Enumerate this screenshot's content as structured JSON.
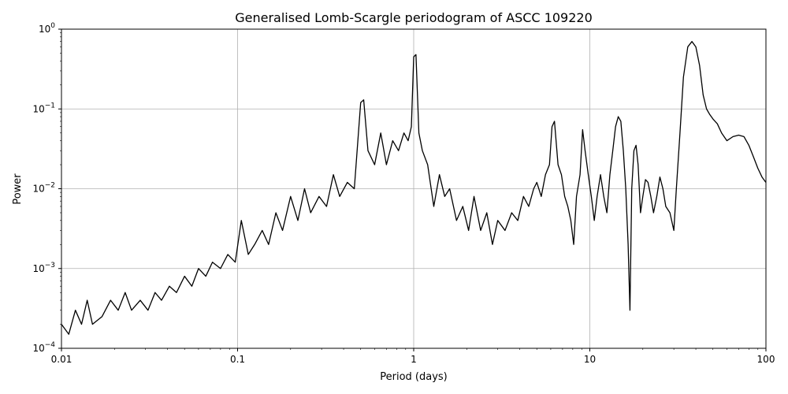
{
  "chart_data": {
    "type": "line",
    "title": "Generalised Lomb-Scargle periodogram of ASCC 109220",
    "xlabel": "Period (days)",
    "ylabel": "Power",
    "xscale": "log",
    "yscale": "log",
    "xlim": [
      0.01,
      100
    ],
    "ylim": [
      0.0001,
      1
    ],
    "grid": true,
    "line_color": "#000000",
    "x_ticks": [
      {
        "value": 0.01,
        "label": "0.01"
      },
      {
        "value": 0.1,
        "label": "0.1"
      },
      {
        "value": 1,
        "label": "1"
      },
      {
        "value": 10,
        "label": "10"
      },
      {
        "value": 100,
        "label": "100"
      }
    ],
    "y_ticks": [
      {
        "value": 0.0001,
        "base": "10",
        "exp": "−4"
      },
      {
        "value": 0.001,
        "base": "10",
        "exp": "−3"
      },
      {
        "value": 0.01,
        "base": "10",
        "exp": "−2"
      },
      {
        "value": 0.1,
        "base": "10",
        "exp": "−1"
      },
      {
        "value": 1,
        "base": "10",
        "exp": "0"
      }
    ],
    "series": [
      {
        "x": [
          0.01,
          0.011,
          0.012,
          0.013,
          0.014,
          0.015,
          0.017,
          0.019,
          0.021,
          0.023,
          0.025,
          0.028,
          0.031,
          0.034,
          0.037,
          0.041,
          0.045,
          0.05,
          0.055,
          0.06,
          0.066,
          0.072,
          0.08,
          0.088,
          0.097,
          0.105,
          0.115,
          0.125,
          0.138,
          0.15,
          0.165,
          0.18,
          0.2,
          0.22,
          0.24,
          0.26,
          0.29,
          0.32,
          0.35,
          0.38,
          0.42,
          0.46,
          0.5,
          0.52,
          0.55,
          0.6,
          0.65,
          0.7,
          0.76,
          0.82,
          0.88,
          0.93,
          0.97,
          1.0,
          1.03,
          1.07,
          1.12,
          1.2,
          1.3,
          1.4,
          1.5,
          1.6,
          1.75,
          1.9,
          2.05,
          2.2,
          2.4,
          2.6,
          2.8,
          3.0,
          3.3,
          3.6,
          3.9,
          4.2,
          4.5,
          4.8,
          5.0,
          5.3,
          5.6,
          5.9,
          6.1,
          6.3,
          6.6,
          6.9,
          7.2,
          7.5,
          7.8,
          8.1,
          8.4,
          8.8,
          9.1,
          9.4,
          9.8,
          10.2,
          10.6,
          11.0,
          11.5,
          12.0,
          12.5,
          13.0,
          13.5,
          14.0,
          14.5,
          15.0,
          15.5,
          16.0,
          16.5,
          16.9,
          17.3,
          17.8,
          18.3,
          18.8,
          19.4,
          20.0,
          20.7,
          21.4,
          22.2,
          23.0,
          24.0,
          25.0,
          26.0,
          27.0,
          28.5,
          30.0,
          31.0,
          32.5,
          34.0,
          36.0,
          38.0,
          40.0,
          42.0,
          44.0,
          46.0,
          48.0,
          50.0,
          53.0,
          56.0,
          60.0,
          65.0,
          70.0,
          75.0,
          80.0,
          85.0,
          90.0,
          95.0,
          100.0
        ],
        "y": [
          0.0002,
          0.00015,
          0.0003,
          0.0002,
          0.0004,
          0.0002,
          0.00025,
          0.0004,
          0.0003,
          0.0005,
          0.0003,
          0.0004,
          0.0003,
          0.0005,
          0.0004,
          0.0006,
          0.0005,
          0.0008,
          0.0006,
          0.001,
          0.0008,
          0.0012,
          0.001,
          0.0015,
          0.0012,
          0.004,
          0.0015,
          0.002,
          0.003,
          0.002,
          0.005,
          0.003,
          0.008,
          0.004,
          0.01,
          0.005,
          0.008,
          0.006,
          0.015,
          0.008,
          0.012,
          0.01,
          0.12,
          0.13,
          0.03,
          0.02,
          0.05,
          0.02,
          0.04,
          0.03,
          0.05,
          0.04,
          0.06,
          0.45,
          0.48,
          0.05,
          0.03,
          0.02,
          0.006,
          0.015,
          0.008,
          0.01,
          0.004,
          0.006,
          0.003,
          0.008,
          0.003,
          0.005,
          0.002,
          0.004,
          0.003,
          0.005,
          0.004,
          0.008,
          0.006,
          0.01,
          0.012,
          0.008,
          0.015,
          0.02,
          0.06,
          0.07,
          0.02,
          0.015,
          0.008,
          0.006,
          0.004,
          0.002,
          0.008,
          0.015,
          0.055,
          0.03,
          0.015,
          0.008,
          0.004,
          0.008,
          0.015,
          0.008,
          0.005,
          0.015,
          0.03,
          0.06,
          0.08,
          0.07,
          0.03,
          0.01,
          0.002,
          0.0003,
          0.01,
          0.03,
          0.035,
          0.02,
          0.005,
          0.008,
          0.013,
          0.012,
          0.008,
          0.005,
          0.008,
          0.014,
          0.01,
          0.006,
          0.005,
          0.003,
          0.01,
          0.05,
          0.25,
          0.6,
          0.7,
          0.6,
          0.35,
          0.15,
          0.1,
          0.085,
          0.075,
          0.065,
          0.05,
          0.04,
          0.045,
          0.047,
          0.045,
          0.035,
          0.025,
          0.018,
          0.014,
          0.012
        ]
      }
    ]
  }
}
